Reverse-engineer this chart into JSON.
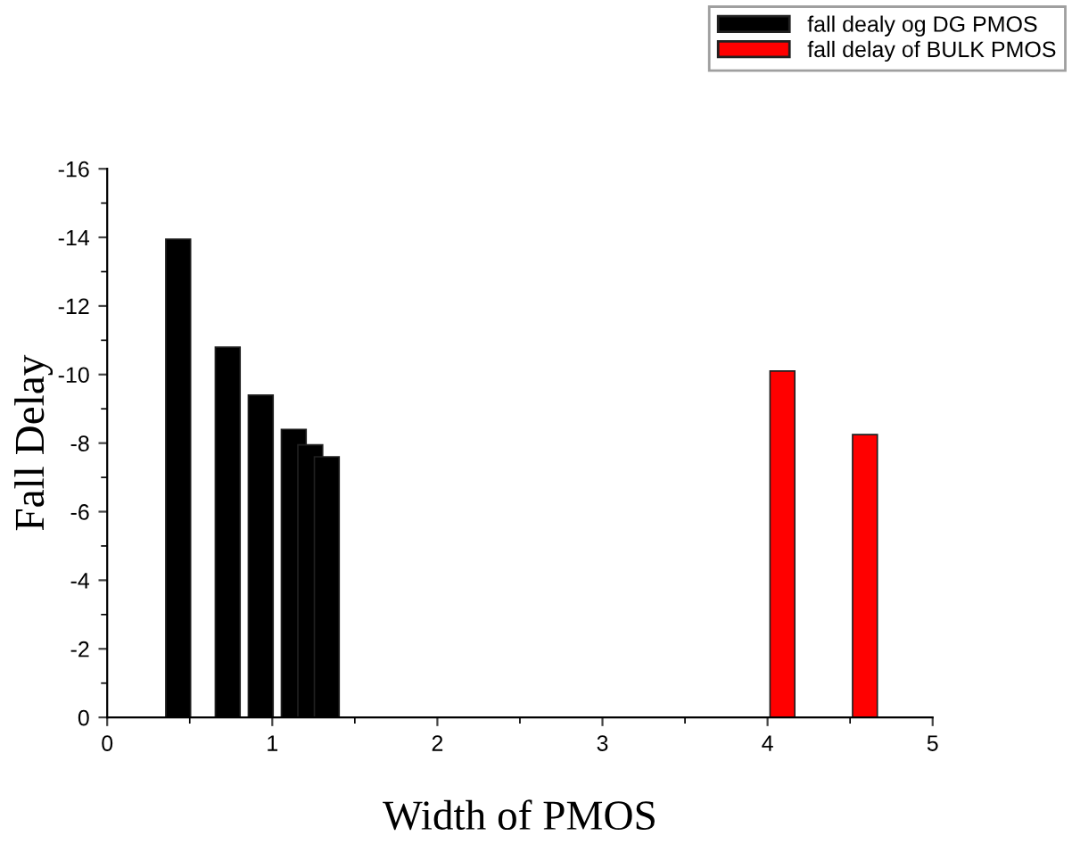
{
  "chart_data": {
    "type": "bar",
    "xlabel": "Width of PMOS",
    "ylabel": "Fall Delay",
    "series": [
      {
        "name": "fall dealy og DG PMOS",
        "color": "#000000",
        "x": [
          0.43,
          0.73,
          0.93,
          1.13,
          1.23,
          1.33
        ],
        "values": [
          -13.95,
          -10.8,
          -9.4,
          -8.4,
          -7.95,
          -7.6
        ]
      },
      {
        "name": "fall delay of BULK PMOS",
        "color": "#ff0000",
        "x": [
          4.09,
          4.59
        ],
        "values": [
          -10.1,
          -8.25
        ]
      }
    ],
    "xlim": [
      0,
      5
    ],
    "xticks": [
      0,
      1,
      2,
      3,
      4,
      5
    ],
    "ylim": [
      0,
      -16
    ],
    "yticks": [
      0,
      -2,
      -4,
      -6,
      -8,
      -10,
      -12,
      -14,
      -16
    ],
    "grid": false,
    "legend": "top right"
  }
}
